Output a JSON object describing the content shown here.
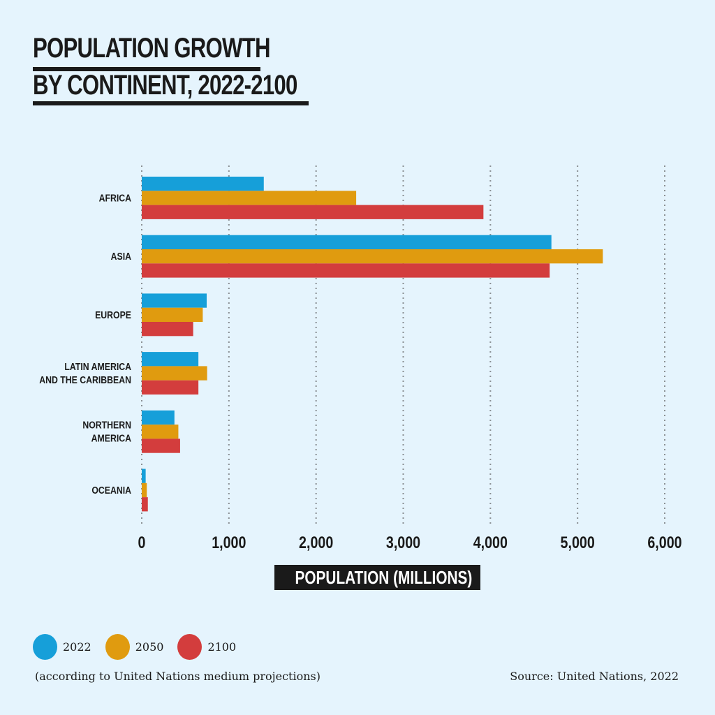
{
  "chart_data": {
    "type": "bar",
    "orientation": "horizontal",
    "title": "POPULATION GROWTH BY CONTINENT, 2022-2100",
    "title_lines": [
      "POPULATION GROWTH",
      "BY CONTINENT, 2022-2100"
    ],
    "xlabel": "POPULATION (MILLIONS)",
    "categories": [
      [
        "AFRICA"
      ],
      [
        "ASIA"
      ],
      [
        "EUROPE"
      ],
      [
        "LATIN AMERICA",
        "AND THE CARIBBEAN"
      ],
      [
        "NORTHERN",
        "AMERICA"
      ],
      [
        "OCEANIA"
      ]
    ],
    "series": [
      {
        "name": "2022",
        "color": "#169fd9",
        "values": [
          1400,
          4700,
          745,
          650,
          375,
          45
        ]
      },
      {
        "name": "2050",
        "color": "#e09b0f",
        "values": [
          2460,
          5290,
          700,
          750,
          420,
          58
        ]
      },
      {
        "name": "2100",
        "color": "#d33d3d",
        "values": [
          3920,
          4680,
          590,
          650,
          440,
          70
        ]
      }
    ],
    "xlim": [
      0,
      6000
    ],
    "xticks": [
      0,
      1000,
      2000,
      3000,
      4000,
      5000,
      6000
    ],
    "xtick_labels": [
      "0",
      "1,000",
      "2,000",
      "3,000",
      "4,000",
      "5,000",
      "6,000"
    ],
    "grid": "vertical dotted",
    "legend_position": "bottom-left"
  },
  "note": "(according to United Nations medium projections)",
  "source": "Source: United Nations, 2022"
}
